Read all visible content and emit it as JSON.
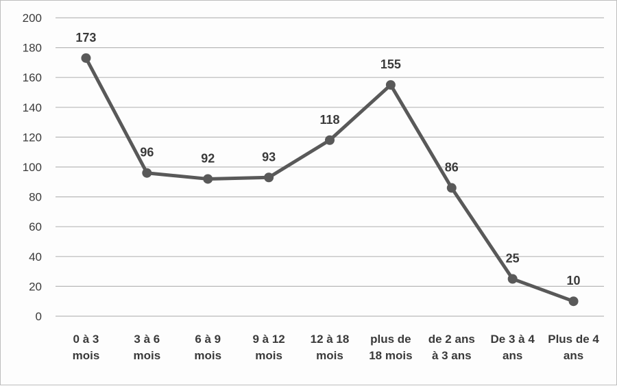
{
  "chart_data": {
    "type": "line",
    "title": "",
    "xlabel": "",
    "ylabel": "",
    "ylim": [
      0,
      200
    ],
    "yticks": [
      0,
      20,
      40,
      60,
      80,
      100,
      120,
      140,
      160,
      180,
      200
    ],
    "grid": true,
    "legend": "none",
    "categories": [
      [
        "0 à 3",
        "mois"
      ],
      [
        "3 à 6",
        "mois"
      ],
      [
        "6 à 9",
        "mois"
      ],
      [
        "9 à 12",
        "mois"
      ],
      [
        "12 à 18",
        "mois"
      ],
      [
        "plus de",
        "18 mois"
      ],
      [
        "de 2 ans",
        "à 3 ans"
      ],
      [
        "De 3 à 4",
        "ans"
      ],
      [
        "Plus de 4",
        "ans"
      ]
    ],
    "series": [
      {
        "values": [
          173,
          96,
          92,
          93,
          118,
          155,
          86,
          25,
          10
        ],
        "color": "#595959"
      }
    ]
  }
}
